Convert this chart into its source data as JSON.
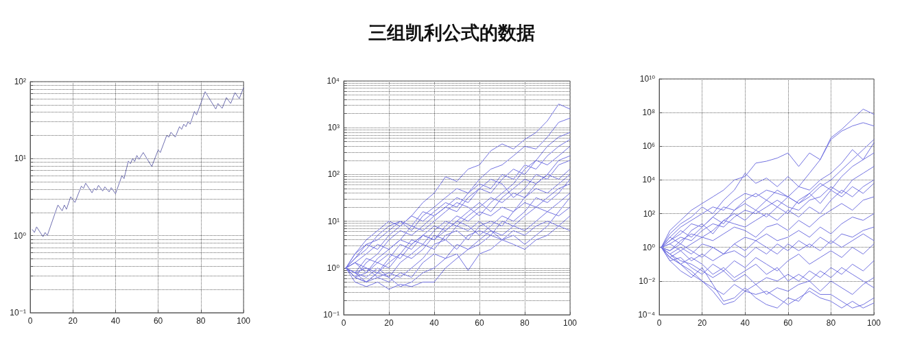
{
  "chart_data": [
    {
      "type": "line",
      "x": [
        1,
        2,
        3,
        6,
        7,
        8,
        13,
        15,
        16,
        17,
        19,
        21,
        24,
        25,
        26,
        29,
        30,
        31,
        32,
        34,
        35,
        37,
        38,
        40,
        43,
        44,
        46,
        47,
        48,
        49,
        50,
        51,
        53,
        57,
        60,
        61,
        64,
        65,
        66,
        68,
        70,
        71,
        72,
        73,
        74,
        75,
        77,
        78,
        82,
        87,
        88,
        90,
        92,
        94,
        96,
        98,
        100
      ],
      "values": [
        1.2,
        1.1,
        1.3,
        0.97,
        1.1,
        1.0,
        2.5,
        2.1,
        2.5,
        2.2,
        3.2,
        2.7,
        4.4,
        4.1,
        4.8,
        3.6,
        4.1,
        3.9,
        4.5,
        3.8,
        4.3,
        3.7,
        4.2,
        3.5,
        6.0,
        5.5,
        9.3,
        8.6,
        10,
        9.2,
        11,
        9.8,
        12,
        7.9,
        13,
        12,
        20,
        19,
        22,
        19,
        26,
        24,
        28,
        26,
        30,
        28,
        41,
        37,
        74,
        44,
        52,
        45,
        62,
        52,
        72,
        60,
        83
      ],
      "color": "#6f6fb0",
      "marker": "none",
      "log": true,
      "grid": true,
      "xlim": [
        0,
        100
      ],
      "xticks": [
        0,
        20,
        40,
        60,
        80,
        100
      ],
      "ylim": [
        0.1,
        100
      ],
      "yticks": [
        {
          "value": 0.1,
          "label": "10⁻¹"
        },
        {
          "value": 0.2,
          "label": null
        },
        {
          "value": 0.3,
          "label": null
        },
        {
          "value": 0.4,
          "label": null
        },
        {
          "value": 0.5,
          "label": null
        },
        {
          "value": 0.6,
          "label": null
        },
        {
          "value": 0.7,
          "label": null
        },
        {
          "value": 0.8,
          "label": null
        },
        {
          "value": 0.9,
          "label": null
        },
        {
          "value": 1,
          "label": "10⁰"
        },
        {
          "value": 2,
          "label": null
        },
        {
          "value": 3,
          "label": null
        },
        {
          "value": 4,
          "label": null
        },
        {
          "value": 5,
          "label": null
        },
        {
          "value": 6,
          "label": null
        },
        {
          "value": 7,
          "label": null
        },
        {
          "value": 8,
          "label": null
        },
        {
          "value": 9,
          "label": null
        },
        {
          "value": 10,
          "label": "10¹"
        },
        {
          "value": 20,
          "label": null
        },
        {
          "value": 30,
          "label": null
        },
        {
          "value": 40,
          "label": null
        },
        {
          "value": 50,
          "label": null
        },
        {
          "value": 60,
          "label": null
        },
        {
          "value": 70,
          "label": null
        },
        {
          "value": 80,
          "label": null
        },
        {
          "value": 90,
          "label": null
        },
        {
          "value": 100,
          "label": "10²"
        }
      ]
    },
    {
      "type": "line",
      "title": "三组凯利公式的数据",
      "x": [
        1,
        5,
        10,
        15,
        20,
        25,
        30,
        35,
        40,
        45,
        50,
        55,
        60,
        65,
        70,
        75,
        80,
        85,
        90,
        95,
        100
      ],
      "marker": "none",
      "log": true,
      "grid": true,
      "xlim": [
        0,
        100
      ],
      "xticks": [
        0,
        20,
        40,
        60,
        80,
        100
      ],
      "ylim": [
        0.1,
        10000
      ],
      "yticks": [
        {
          "value": 0.1,
          "label": "10⁻¹"
        },
        {
          "value": 0.2,
          "label": null
        },
        {
          "value": 0.3,
          "label": null
        },
        {
          "value": 0.4,
          "label": null
        },
        {
          "value": 0.5,
          "label": null
        },
        {
          "value": 0.6,
          "label": null
        },
        {
          "value": 0.7,
          "label": null
        },
        {
          "value": 0.8,
          "label": null
        },
        {
          "value": 0.9,
          "label": null
        },
        {
          "value": 1,
          "label": "10⁰"
        },
        {
          "value": 2,
          "label": null
        },
        {
          "value": 3,
          "label": null
        },
        {
          "value": 4,
          "label": null
        },
        {
          "value": 5,
          "label": null
        },
        {
          "value": 6,
          "label": null
        },
        {
          "value": 7,
          "label": null
        },
        {
          "value": 8,
          "label": null
        },
        {
          "value": 9,
          "label": null
        },
        {
          "value": 10,
          "label": "10¹"
        },
        {
          "value": 20,
          "label": null
        },
        {
          "value": 30,
          "label": null
        },
        {
          "value": 40,
          "label": null
        },
        {
          "value": 50,
          "label": null
        },
        {
          "value": 60,
          "label": null
        },
        {
          "value": 70,
          "label": null
        },
        {
          "value": 80,
          "label": null
        },
        {
          "value": 90,
          "label": null
        },
        {
          "value": 100,
          "label": "10²"
        },
        {
          "value": 200,
          "label": null
        },
        {
          "value": 300,
          "label": null
        },
        {
          "value": 400,
          "label": null
        },
        {
          "value": 500,
          "label": null
        },
        {
          "value": 600,
          "label": null
        },
        {
          "value": 700,
          "label": null
        },
        {
          "value": 800,
          "label": null
        },
        {
          "value": 900,
          "label": null
        },
        {
          "value": 1000,
          "label": "10³"
        },
        {
          "value": 2000,
          "label": null
        },
        {
          "value": 3000,
          "label": null
        },
        {
          "value": 4000,
          "label": null
        },
        {
          "value": 5000,
          "label": null
        },
        {
          "value": 6000,
          "label": null
        },
        {
          "value": 7000,
          "label": null
        },
        {
          "value": 8000,
          "label": null
        },
        {
          "value": 9000,
          "label": null
        },
        {
          "value": 10000,
          "label": "10⁴"
        }
      ],
      "series": [
        {
          "color": "#7272e0",
          "values": [
            1,
            2,
            4,
            6.3,
            10,
            7.9,
            13,
            25,
            40,
            89,
            71,
            130,
            160,
            320,
            450,
            350,
            560,
            790,
            1400,
            3200,
            2500
          ]
        },
        {
          "color": "#7272e0",
          "values": [
            1,
            1.6,
            2.5,
            5,
            7.9,
            10,
            6.3,
            13,
            20,
            32,
            50,
            40,
            79,
            130,
            160,
            250,
            400,
            350,
            630,
            1300,
            1600
          ]
        },
        {
          "color": "#7272e0",
          "values": [
            1,
            0.63,
            1.3,
            2,
            4,
            6.3,
            5,
            7.9,
            13,
            20,
            16,
            32,
            50,
            40,
            79,
            130,
            100,
            200,
            400,
            630,
            790
          ]
        },
        {
          "color": "#7272e0",
          "values": [
            1,
            1.3,
            0.79,
            1.6,
            2.5,
            4,
            7.9,
            6.3,
            10,
            16,
            25,
            20,
            13,
            25,
            40,
            63,
            130,
            200,
            160,
            250,
            400
          ]
        },
        {
          "color": "#7272e0",
          "values": [
            1,
            0.79,
            0.5,
            0.79,
            1.6,
            3.2,
            2.5,
            5,
            7.9,
            6.3,
            10,
            16,
            25,
            16,
            32,
            50,
            79,
            63,
            100,
            200,
            250
          ]
        },
        {
          "color": "#7272e0",
          "values": [
            1,
            0.63,
            0.79,
            1.3,
            1,
            2,
            4,
            3.2,
            6.3,
            10,
            7.9,
            13,
            20,
            32,
            25,
            40,
            32,
            63,
            100,
            79,
            130
          ]
        },
        {
          "color": "#7272e0",
          "values": [
            1,
            1.3,
            2,
            3.2,
            2.5,
            4,
            3.2,
            5,
            4,
            7.9,
            13,
            10,
            16,
            13,
            20,
            16,
            32,
            50,
            40,
            63,
            100
          ]
        },
        {
          "color": "#7272e0",
          "values": [
            1,
            0.79,
            0.63,
            1,
            0.63,
            1.3,
            2,
            3.2,
            2.5,
            5,
            6.3,
            4,
            7.9,
            10,
            7.9,
            16,
            25,
            20,
            32,
            50,
            63
          ]
        },
        {
          "color": "#7272e0",
          "values": [
            1,
            0.63,
            0.5,
            0.63,
            0.79,
            0.63,
            1,
            1.6,
            3.2,
            4,
            2.5,
            5,
            6.3,
            5,
            10,
            7.9,
            13,
            20,
            16,
            25,
            40
          ]
        },
        {
          "color": "#7272e0",
          "values": [
            1,
            0.79,
            1,
            0.63,
            0.5,
            0.79,
            0.63,
            1.3,
            2,
            1.6,
            3.2,
            2.5,
            4,
            6.3,
            5,
            7.9,
            6.3,
            10,
            16,
            13,
            20
          ]
        },
        {
          "color": "#7272e0",
          "values": [
            1,
            0.5,
            0.4,
            0.5,
            0.35,
            0.45,
            0.4,
            0.5,
            0.5,
            1,
            1.6,
            2.5,
            3.2,
            5,
            4,
            6.3,
            5,
            7.9,
            10,
            7.9,
            13
          ]
        },
        {
          "color": "#7272e0",
          "values": [
            1,
            0.63,
            0.5,
            0.79,
            0.63,
            0.4,
            0.5,
            0.79,
            1,
            1.6,
            2,
            0.89,
            2,
            2.5,
            4,
            3.2,
            2.5,
            4,
            5,
            7.9,
            6.3
          ]
        },
        {
          "color": "#7272e0",
          "values": [
            1,
            1.6,
            3.2,
            2.5,
            5,
            7.9,
            13,
            10,
            16,
            25,
            20,
            40,
            63,
            50,
            100,
            79,
            160,
            130,
            250,
            400,
            560
          ]
        },
        {
          "color": "#7272e0",
          "values": [
            1,
            0.79,
            1.6,
            1.3,
            2,
            1.6,
            3.2,
            5,
            4,
            6.3,
            10,
            7.9,
            5,
            7.9,
            13,
            10,
            16,
            32,
            25,
            40,
            79
          ]
        },
        {
          "color": "#7272e0",
          "values": [
            1,
            1.3,
            1,
            0.79,
            1.3,
            2,
            1.6,
            2.5,
            5,
            4,
            7.9,
            6.3,
            10,
            6.3,
            4,
            5,
            3.2,
            5,
            7.9,
            16,
            32
          ]
        },
        {
          "color": "#7272e0",
          "values": [
            1,
            2,
            3.2,
            4,
            6.3,
            10,
            7.9,
            16,
            13,
            20,
            32,
            25,
            50,
            79,
            63,
            32,
            50,
            100,
            79,
            160,
            200
          ]
        }
      ]
    },
    {
      "type": "line",
      "x": [
        1,
        5,
        10,
        15,
        20,
        25,
        30,
        35,
        40,
        45,
        50,
        55,
        60,
        65,
        70,
        75,
        80,
        85,
        90,
        95,
        100
      ],
      "marker": "none",
      "log": true,
      "grid": true,
      "xlim": [
        0,
        100
      ],
      "xticks": [
        0,
        20,
        40,
        60,
        80,
        100
      ],
      "ylim": [
        0.0001,
        10000000000
      ],
      "yticks": [
        {
          "value": 0.0001,
          "label": "10⁻⁴"
        },
        {
          "value": 0.01,
          "label": "10⁻²"
        },
        {
          "value": 1,
          "label": "10⁰"
        },
        {
          "value": 100,
          "label": "10²"
        },
        {
          "value": 10000,
          "label": "10⁴"
        },
        {
          "value": 1000000,
          "label": "10⁶"
        },
        {
          "value": 100000000,
          "label": "10⁸"
        },
        {
          "value": 10000000000,
          "label": "10¹⁰"
        }
      ],
      "series": [
        {
          "color": "#7272e0",
          "values": [
            1,
            10,
            40,
            160,
            400,
            1000,
            2500,
            10000.0,
            16000.0,
            100000.0,
            130000.0,
            200000.0,
            400000.0,
            63000.0,
            400000.0,
            160000.0,
            3200000.0,
            10000000.0,
            40000000.0,
            160000000.0,
            79000000.0
          ]
        },
        {
          "color": "#7272e0",
          "values": [
            1,
            6.3,
            25,
            63,
            250,
            100,
            630,
            2500,
            25000.0,
            6300,
            13000.0,
            4000,
            16000.0,
            4000,
            25000.0,
            160000.0,
            2500000.0,
            7900000.0,
            16000000.0,
            25000000.0,
            16000000.0
          ]
        },
        {
          "color": "#7272e0",
          "values": [
            1,
            4,
            16,
            40,
            100,
            250,
            160,
            630,
            1600,
            1000,
            2500,
            1600,
            1000,
            4000,
            2500,
            10000.0,
            25000.0,
            100000.0,
            630000.0,
            160000.0,
            1600000.0
          ]
        },
        {
          "color": "#7272e0",
          "values": [
            1,
            2.5,
            6.3,
            25,
            16,
            63,
            250,
            160,
            630,
            1600,
            630,
            250,
            1000,
            400,
            1600,
            6300,
            2500,
            16000.0,
            63000.0,
            160000.0,
            400000.0
          ]
        },
        {
          "color": "#7272e0",
          "values": [
            1,
            1.6,
            4,
            2.5,
            10,
            25,
            16,
            63,
            160,
            100,
            250,
            630,
            250,
            160,
            630,
            1000,
            4000,
            1600,
            10000.0,
            25000.0,
            63000.0
          ]
        },
        {
          "color": "#7272e0",
          "values": [
            1,
            0.63,
            2.5,
            6.3,
            4,
            10,
            40,
            25,
            16,
            40,
            100,
            40,
            160,
            63,
            250,
            100,
            630,
            2500,
            1000,
            4000,
            10000.0
          ]
        },
        {
          "color": "#7272e0",
          "values": [
            1,
            1.6,
            0.63,
            1.6,
            4,
            2.5,
            6.3,
            16,
            10,
            4,
            16,
            25,
            10,
            40,
            16,
            63,
            160,
            400,
            160,
            630,
            1000
          ]
        },
        {
          "color": "#7272e0",
          "values": [
            1,
            0.4,
            1,
            0.4,
            1.6,
            1,
            0.4,
            1.6,
            4,
            2.5,
            6.3,
            2.5,
            4,
            10,
            4,
            16,
            6.3,
            25,
            63,
            40,
            100
          ]
        },
        {
          "color": "#7272e0",
          "values": [
            1,
            0.25,
            0.63,
            0.16,
            0.4,
            0.16,
            0.4,
            0.63,
            0.25,
            1,
            0.4,
            1.6,
            0.63,
            2.5,
            1,
            4,
            1.6,
            6.3,
            4,
            10,
            16
          ]
        },
        {
          "color": "#7272e0",
          "values": [
            1,
            0.16,
            0.25,
            0.063,
            0.025,
            0.1,
            0.04,
            0.16,
            0.063,
            0.25,
            0.1,
            0.04,
            0.16,
            0.4,
            0.1,
            0.25,
            0.63,
            0.25,
            1,
            0.4,
            1.6
          ]
        },
        {
          "color": "#7272e0",
          "values": [
            1,
            0.4,
            0.16,
            0.1,
            0.04,
            0.016,
            0.04,
            0.01,
            0.025,
            0.0063,
            0.016,
            0.01,
            0.025,
            0.01,
            0.04,
            0.016,
            0.063,
            0.025,
            0.1,
            0.04,
            0.16
          ]
        },
        {
          "color": "#7272e0",
          "values": [
            1,
            0.25,
            0.1,
            0.025,
            0.01,
            0.004,
            0.0016,
            0.0063,
            0.0025,
            0.0063,
            0.0016,
            0.004,
            0.0025,
            0.0063,
            0.01,
            0.0025,
            0.01,
            0.004,
            0.0016,
            0.0063,
            0.016
          ]
        },
        {
          "color": "#7272e0",
          "values": [
            1,
            0.16,
            0.04,
            0.016,
            0.063,
            0.0063,
            0.00063,
            0.001,
            0.004,
            0.001,
            0.0004,
            0.00025,
            0.001,
            0.00063,
            0.004,
            0.0016,
            0.0016,
            0.00063,
            0.00025,
            0.0004,
            0.001
          ]
        },
        {
          "color": "#7272e0",
          "values": [
            1,
            0.4,
            0.1,
            0.04,
            0.01,
            0.0025,
            0.0004,
            0.00063,
            0.0025,
            0.0016,
            0.0025,
            0.001,
            0.0004,
            0.001,
            0.0025,
            0.001,
            0.00063,
            0.00025,
            0.00063,
            0.00025,
            0.0005
          ]
        },
        {
          "color": "#7272e0",
          "values": [
            1,
            4,
            1.6,
            10,
            25,
            6.3,
            40,
            100,
            40,
            160,
            63,
            250,
            100,
            630,
            1600,
            400,
            2500,
            1000,
            4000,
            1600,
            6300
          ]
        },
        {
          "color": "#7272e0",
          "values": [
            1,
            0.63,
            1.6,
            0.63,
            0.25,
            1,
            0.4,
            1.6,
            0.63,
            2.5,
            1,
            0.4,
            1.6,
            0.63,
            1.6,
            0.63,
            2.5,
            1,
            2.5,
            6.3,
            2.5
          ]
        },
        {
          "color": "#7272e0",
          "values": [
            1,
            0.25,
            0.1,
            0.25,
            0.1,
            0.025,
            0.063,
            0.016,
            0.04,
            0.1,
            0.025,
            0.063,
            0.01,
            0.025,
            0.01,
            0.04,
            0.016,
            0.063,
            0.025,
            0.01,
            0.004
          ]
        },
        {
          "color": "#7272e0",
          "values": [
            1,
            2.5,
            10,
            4,
            16,
            63,
            25,
            160,
            400,
            160,
            630,
            2500,
            1000,
            400,
            1000,
            4000,
            10000.0,
            40000.0,
            160000.0,
            630000.0,
            2500000.0
          ]
        }
      ]
    }
  ]
}
